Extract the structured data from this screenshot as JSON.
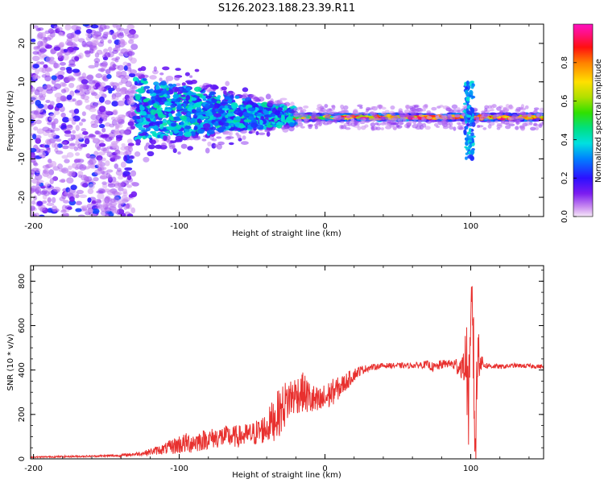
{
  "title": "S126.2023.188.23.39.R11",
  "colors": {
    "snr_line": "#e8302e",
    "axis": "#000000",
    "grid_bg": "#ffffff"
  },
  "chart_data": [
    {
      "type": "heatmap",
      "xlabel": "Height of straight line (km)",
      "ylabel": "Frequency (Hz)",
      "xlim": [
        -202,
        150
      ],
      "ylim": [
        -25,
        25
      ],
      "x_ticks": [
        -200,
        -100,
        0,
        100
      ],
      "y_ticks": [
        -20,
        -10,
        0,
        10,
        20
      ],
      "colorbar": {
        "label": "Normalized spectral amplitude",
        "range": [
          0,
          1
        ],
        "ticks": [
          "0.0",
          "0.2",
          "0.4",
          "0.6",
          "0.8"
        ],
        "colormap": "hsv-like: magenta-white -> violet -> blue -> cyan -> green -> yellow -> red -> magenta"
      },
      "features": [
        {
          "x_range": [
            -202,
            -130
          ],
          "freq_range": [
            -25,
            25
          ],
          "amplitude": [
            0.05,
            0.25
          ],
          "pattern": "diffuse noise"
        },
        {
          "x_range": [
            -130,
            -20
          ],
          "freq_center": 3,
          "freq_spread_start": 12,
          "freq_spread_end": 3,
          "amplitude": [
            0.15,
            0.45
          ],
          "pattern": "narrowing band"
        },
        {
          "x_range": [
            -20,
            150
          ],
          "freq_center": 0.8,
          "freq_spread": 1.2,
          "amplitude": [
            0.6,
            0.95
          ],
          "pattern": "narrow carrier line"
        },
        {
          "x_range": [
            96,
            102
          ],
          "freq_range": [
            -10,
            10
          ],
          "amplitude": [
            0.2,
            0.4
          ],
          "pattern": "vertical spike"
        }
      ]
    },
    {
      "type": "line",
      "xlabel": "Height of straight line (km)",
      "ylabel": "SNR (10 * v/v)",
      "xlim": [
        -202,
        150
      ],
      "ylim": [
        0,
        870
      ],
      "x_ticks": [
        -200,
        -100,
        0,
        100
      ],
      "y_ticks": [
        0,
        200,
        400,
        600,
        800
      ],
      "series": [
        {
          "x": [
            -202,
            -180,
            -160,
            -140,
            -125,
            -110,
            -100,
            -90,
            -80,
            -70,
            -60,
            -50,
            -40,
            -35,
            -30,
            -25,
            -20,
            -15,
            -10,
            -5,
            0,
            5,
            10,
            15,
            20,
            25,
            30,
            40,
            50,
            60,
            70,
            75,
            80,
            85,
            90,
            95,
            97,
            99,
            101,
            103,
            105,
            108,
            110,
            120,
            130,
            140,
            150
          ],
          "y": [
            8,
            10,
            12,
            15,
            25,
            45,
            65,
            75,
            90,
            100,
            100,
            110,
            140,
            180,
            220,
            270,
            290,
            300,
            270,
            250,
            270,
            300,
            320,
            350,
            380,
            400,
            410,
            420,
            420,
            420,
            425,
            410,
            425,
            430,
            420,
            415,
            450,
            200,
            800,
            50,
            500,
            430,
            420,
            415,
            420,
            418,
            415
          ],
          "noise": [
            3,
            4,
            4,
            6,
            10,
            25,
            45,
            50,
            45,
            50,
            50,
            55,
            70,
            100,
            110,
            100,
            90,
            90,
            80,
            70,
            70,
            60,
            50,
            40,
            30,
            20,
            15,
            12,
            12,
            12,
            18,
            22,
            22,
            15,
            40,
            60,
            200,
            250,
            200,
            250,
            150,
            30,
            15,
            10,
            10,
            10,
            10
          ]
        }
      ]
    }
  ]
}
